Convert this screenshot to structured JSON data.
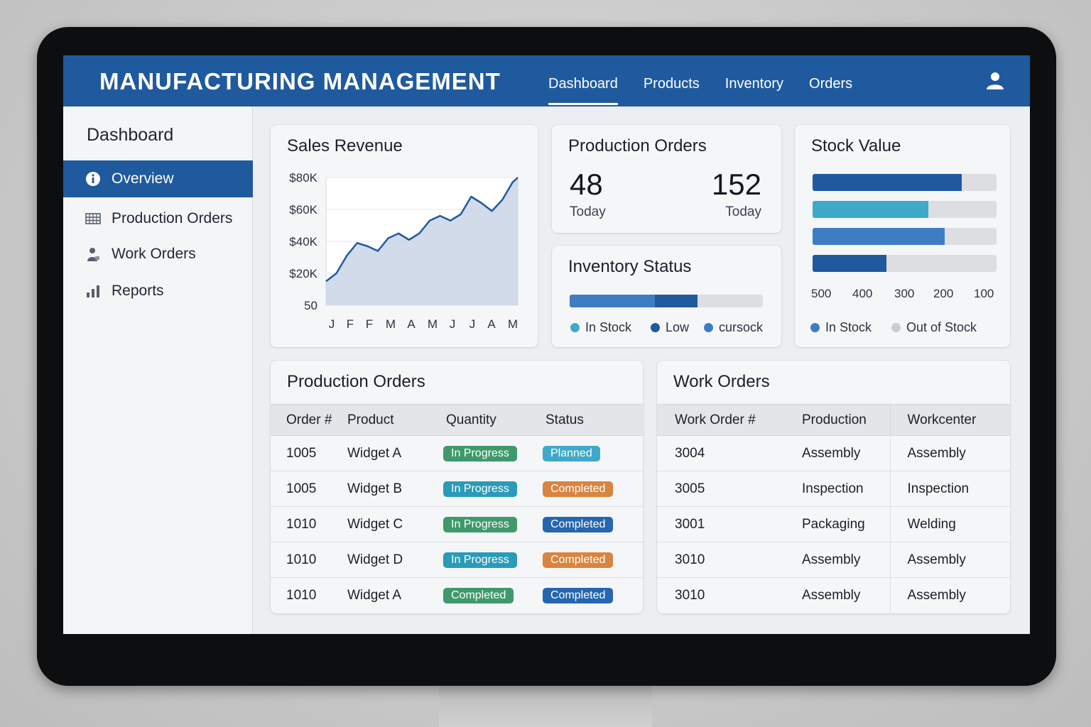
{
  "header": {
    "title": "MANUFACTURING MANAGEMENT",
    "nav": [
      "Dashboard",
      "Products",
      "Inventory",
      "Orders"
    ],
    "active_nav": "Dashboard"
  },
  "sidebar": {
    "title": "Dashboard",
    "items": [
      {
        "label": "Overview",
        "icon": "info-icon"
      },
      {
        "label": "Production Orders",
        "icon": "grid-icon"
      },
      {
        "label": "Work Orders",
        "icon": "worker-icon"
      },
      {
        "label": "Reports",
        "icon": "bar-chart-icon"
      }
    ]
  },
  "sales_revenue": {
    "title": "Sales Revenue"
  },
  "production_summary": {
    "title": "Production Orders",
    "left": {
      "value": "48",
      "label": "Today"
    },
    "right": {
      "value": "152",
      "label": "Today"
    }
  },
  "inventory_status": {
    "title": "Inventory Status",
    "levels": {
      "in_stock": 0.44,
      "low": 0.22
    },
    "legend": [
      "In Stock",
      "Low",
      "cursock"
    ]
  },
  "stock_value": {
    "title": "Stock Value",
    "bars": [
      0.81,
      0.63,
      0.72,
      0.4
    ],
    "ticks": [
      "500",
      "400",
      "300",
      "200",
      "100"
    ],
    "legend": [
      "In Stock",
      "Out of Stock"
    ]
  },
  "production_orders": {
    "title": "Production Orders",
    "columns": [
      "Order #",
      "Product",
      "Quantity",
      "Status"
    ],
    "rows": [
      [
        "1005",
        "Widget A",
        "In Progress",
        "Planned"
      ],
      [
        "1005",
        "Widget B",
        "In Progress",
        "Completed"
      ],
      [
        "1010",
        "Widget C",
        "In Progress",
        "Completed"
      ],
      [
        "1010",
        "Widget D",
        "In Progress",
        "Completed"
      ],
      [
        "1010",
        "Widget A",
        "Completed",
        "Completed"
      ]
    ]
  },
  "work_orders": {
    "title": "Work Orders",
    "columns": [
      "Work Order #",
      "Production",
      "Workcenter"
    ],
    "rows": [
      [
        "3004",
        "Assembly",
        "Assembly"
      ],
      [
        "3005",
        "Inspection",
        "Inspection"
      ],
      [
        "3001",
        "Packaging",
        "Welding"
      ],
      [
        "3010",
        "Assembly",
        "Assembly"
      ],
      [
        "3010",
        "Assembly",
        "Assembly"
      ]
    ]
  },
  "colors": {
    "brand": "#1f5a9e",
    "green": "#3e9a6a",
    "teal": "#2a9bb8",
    "orange": "#d9843f",
    "blue": "#2566b0",
    "light_blue": "#3fa9c9"
  },
  "chart_data": {
    "type": "area",
    "title": "Sales Revenue",
    "categories": [
      "J",
      "F",
      "F",
      "M",
      "A",
      "M",
      "J",
      "J",
      "A",
      "M"
    ],
    "x": [
      0,
      0.5,
      1,
      1.5,
      2,
      2.5,
      3,
      3.5,
      4,
      4.5,
      5,
      5.5,
      6,
      6.5,
      7,
      7.5,
      8,
      8.5,
      9,
      9.25
    ],
    "y": [
      15000,
      20000,
      31000,
      39000,
      37000,
      34000,
      42000,
      45000,
      41000,
      45000,
      53000,
      56000,
      53000,
      57000,
      68000,
      64000,
      59000,
      66000,
      77000,
      80000
    ],
    "yticks": [
      "$80K",
      "$60K",
      "$40K",
      "$20K",
      "50"
    ],
    "ylim": [
      0,
      80000
    ],
    "grid": true
  }
}
